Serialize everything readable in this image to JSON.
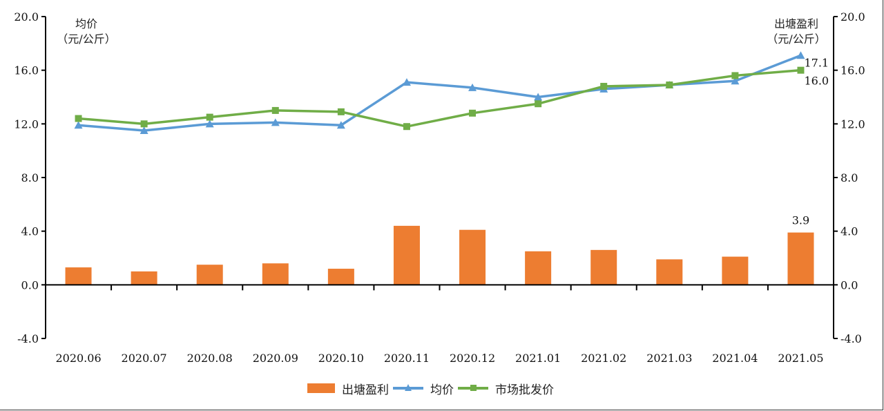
{
  "chart_data": {
    "type": "bar+line",
    "title": "",
    "categories": [
      "2020.06",
      "2020.07",
      "2020.08",
      "2020.09",
      "2020.10",
      "2020.11",
      "2020.12",
      "2021.01",
      "2021.02",
      "2021.03",
      "2021.04",
      "2021.05"
    ],
    "series": [
      {
        "name": "出塘盈利",
        "type": "bar",
        "axis": "right",
        "color": "#ED7D31",
        "values": [
          1.3,
          1.0,
          1.5,
          1.6,
          1.2,
          4.4,
          4.1,
          2.5,
          2.6,
          1.9,
          2.1,
          3.9
        ]
      },
      {
        "name": "均价",
        "type": "line",
        "axis": "left",
        "marker": "triangle",
        "color": "#5B9BD5",
        "values": [
          11.9,
          11.5,
          12.0,
          12.1,
          11.9,
          15.1,
          14.7,
          14.0,
          14.6,
          14.9,
          15.2,
          17.1
        ]
      },
      {
        "name": "市场批发价",
        "type": "line",
        "axis": "left",
        "marker": "square",
        "color": "#70AD47",
        "values": [
          12.4,
          12.0,
          12.5,
          13.0,
          12.9,
          11.8,
          12.8,
          13.5,
          14.8,
          14.9,
          15.6,
          16.0
        ]
      }
    ],
    "annotations": [
      {
        "series": "出塘盈利",
        "category": "2021.05",
        "text": "3.9"
      },
      {
        "series": "均价",
        "category": "2021.05",
        "text": "17.1"
      },
      {
        "series": "市场批发价",
        "category": "2021.05",
        "text": "16.0"
      }
    ],
    "left_axis": {
      "label_line1": "均价",
      "label_line2": "（元/公斤）",
      "ylim": [
        -4.0,
        20.0
      ],
      "ticks": [
        "-4.0",
        "0.0",
        "4.0",
        "8.0",
        "12.0",
        "16.0",
        "20.0"
      ]
    },
    "right_axis": {
      "label_line1": "出塘盈利",
      "label_line2": "（元/公斤）",
      "ylim": [
        -4.0,
        20.0
      ],
      "ticks": [
        "-4.0",
        "0.0",
        "4.0",
        "8.0",
        "12.0",
        "16.0",
        "20.0"
      ]
    },
    "xlabel": "",
    "grid": false,
    "legend_position": "bottom"
  },
  "legend": {
    "items": [
      {
        "label": "出塘盈利",
        "color": "#ED7D31"
      },
      {
        "label": "均价",
        "color": "#5B9BD5"
      },
      {
        "label": "市场批发价",
        "color": "#70AD47"
      }
    ]
  }
}
